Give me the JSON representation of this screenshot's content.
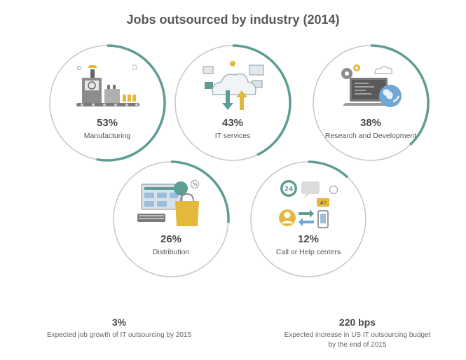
{
  "title": "Jobs outsourced by industry (2014)",
  "chart_data": {
    "type": "pie",
    "title": "Jobs outsourced by industry (2014)",
    "categories": [
      "Manufacturing",
      "IT services",
      "Research and Development",
      "Distribution",
      "Call or Help centers"
    ],
    "values": [
      53,
      43,
      38,
      26,
      12
    ],
    "labels": [
      "53%",
      "43%",
      "38%",
      "26%",
      "12%"
    ],
    "unit": "%",
    "colors": {
      "arc": "#5e9d94",
      "ring": "#c6c6c6"
    }
  },
  "icons": [
    "factory-icon",
    "cloud-icon",
    "laptop-globe-icon",
    "shopping-icon",
    "call-center-icon"
  ],
  "stats": [
    {
      "value": "3%",
      "desc": "Expected job growth of IT outsourcing by 2015"
    },
    {
      "value": "220 bps",
      "desc_line1": "Expected increase in US IT outsourcing budget",
      "desc_line2": "by the end of 2015"
    }
  ]
}
